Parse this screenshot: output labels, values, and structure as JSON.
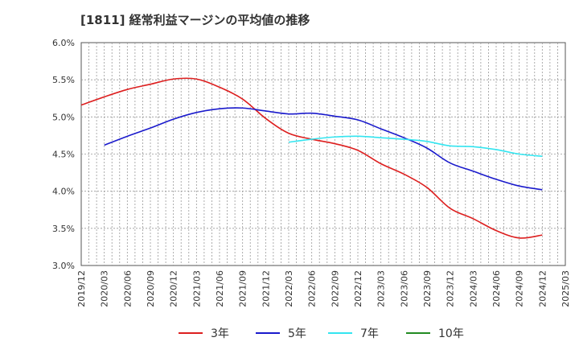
{
  "title": "[1811]  経常利益マージンの平均値の推移",
  "chart_data": {
    "type": "line",
    "title": "[1811]  経常利益マージンの平均値の推移",
    "xlabel": "",
    "ylabel": "",
    "x_ticks": [
      "2019/12",
      "2020/03",
      "2020/06",
      "2020/09",
      "2020/12",
      "2021/03",
      "2021/06",
      "2021/09",
      "2021/12",
      "2022/03",
      "2022/06",
      "2022/09",
      "2022/12",
      "2023/03",
      "2023/06",
      "2023/09",
      "2023/12",
      "2024/03",
      "2024/06",
      "2024/09",
      "2024/12",
      "2025/03"
    ],
    "y_ticks": [
      "3.0%",
      "3.5%",
      "4.0%",
      "4.5%",
      "5.0%",
      "5.5%",
      "6.0%"
    ],
    "ylim": [
      3.0,
      6.0
    ],
    "grid": true,
    "legend_position": "bottom",
    "series": [
      {
        "name": "3年",
        "color": "#dd1f1f",
        "x": [
          "2019/12",
          "2020/03",
          "2020/06",
          "2020/09",
          "2020/12",
          "2021/03",
          "2021/06",
          "2021/09",
          "2021/12",
          "2022/03",
          "2022/06",
          "2022/09",
          "2022/12",
          "2023/03",
          "2023/06",
          "2023/09",
          "2023/12",
          "2024/03",
          "2024/06",
          "2024/09",
          "2024/12"
        ],
        "values": [
          5.16,
          5.27,
          5.37,
          5.44,
          5.51,
          5.51,
          5.4,
          5.24,
          4.98,
          4.78,
          4.7,
          4.64,
          4.55,
          4.37,
          4.23,
          4.05,
          3.77,
          3.63,
          3.47,
          3.37,
          3.41
        ]
      },
      {
        "name": "5年",
        "color": "#1a1acc",
        "x": [
          "2020/03",
          "2020/06",
          "2020/09",
          "2020/12",
          "2021/03",
          "2021/06",
          "2021/09",
          "2021/12",
          "2022/03",
          "2022/06",
          "2022/09",
          "2022/12",
          "2023/03",
          "2023/06",
          "2023/09",
          "2023/12",
          "2024/03",
          "2024/06",
          "2024/09",
          "2024/12"
        ],
        "values": [
          4.62,
          4.74,
          4.85,
          4.97,
          5.06,
          5.11,
          5.12,
          5.08,
          5.04,
          5.05,
          5.01,
          4.96,
          4.84,
          4.72,
          4.58,
          4.38,
          4.27,
          4.16,
          4.07,
          4.02
        ]
      },
      {
        "name": "7年",
        "color": "#33e5f0",
        "x": [
          "2022/03",
          "2022/06",
          "2022/09",
          "2022/12",
          "2023/03",
          "2023/06",
          "2023/09",
          "2023/12",
          "2024/03",
          "2024/06",
          "2024/09",
          "2024/12"
        ],
        "values": [
          4.66,
          4.7,
          4.73,
          4.74,
          4.72,
          4.7,
          4.67,
          4.61,
          4.6,
          4.56,
          4.5,
          4.47
        ]
      },
      {
        "name": "10年",
        "color": "#228b22",
        "x": [],
        "values": []
      }
    ]
  }
}
